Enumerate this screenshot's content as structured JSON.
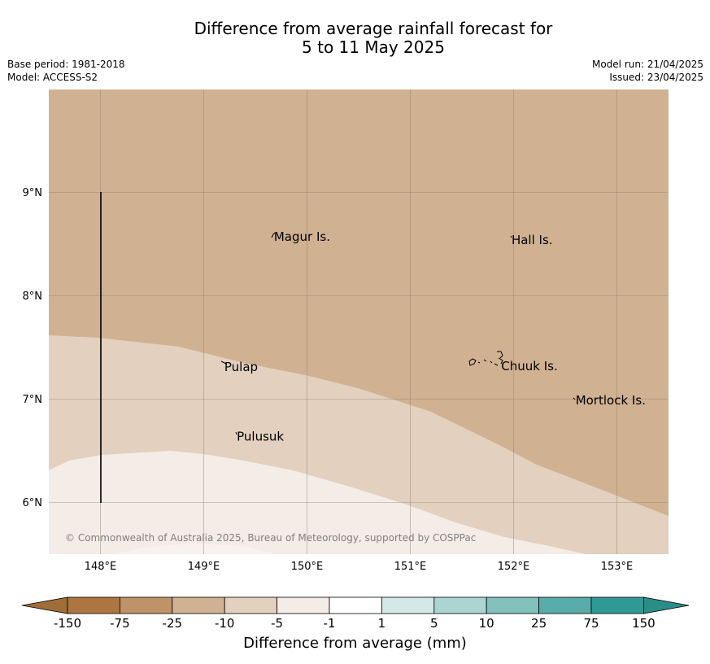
{
  "title_line1": "Difference from average rainfall forecast for",
  "title_line2": "5 to 11 May 2025",
  "base_period": "Base period: 1981-2018",
  "model": "Model: ACCESS-S2",
  "model_run": "Model run: 21/04/2025",
  "issued": "Issued: 23/04/2025",
  "copyright": "© Commonwealth of Australia 2025, Bureau of Meteorology, supported by COSPPac",
  "x_ticks": [
    "148°E",
    "149°E",
    "150°E",
    "151°E",
    "152°E",
    "153°E"
  ],
  "y_ticks": [
    "9°N",
    "8°N",
    "7°N",
    "6°N"
  ],
  "places": [
    {
      "name": "Magur Is.",
      "lon": 149.68,
      "lat": 8.53
    },
    {
      "name": "Hall Is.",
      "lon": 151.98,
      "lat": 8.5
    },
    {
      "name": "Pulap",
      "lon": 149.2,
      "lat": 7.27
    },
    {
      "name": "Chuuk Is.",
      "lon": 151.88,
      "lat": 7.28
    },
    {
      "name": "Mortlock Is.",
      "lon": 152.6,
      "lat": 6.95
    },
    {
      "name": "Pulusuk",
      "lon": 149.32,
      "lat": 6.6
    }
  ],
  "colorbar": {
    "title": "Difference from average (mm)",
    "tick_labels": [
      "-150",
      "-75",
      "-25",
      "-10",
      "-5",
      "-1",
      "1",
      "5",
      "10",
      "25",
      "75",
      "150"
    ],
    "colors": [
      "#ad7640",
      "#bf9367",
      "#d0b293",
      "#e3d0bf",
      "#f4ece6",
      "#ffffff",
      "#d4e9e7",
      "#acd4d1",
      "#82c1bc",
      "#58ada9",
      "#2e9995"
    ],
    "low_extend_color": "#a06d38",
    "high_extend_color": "#2a8d88"
  },
  "map_fill_colors": {
    "band_-25_-10": "#d0b293",
    "band_-10_-5": "#e3d0bf",
    "band_-5_-1": "#f4ece6"
  },
  "colors": {
    "grid": "#8c7a68",
    "text_muted": "#808080"
  }
}
